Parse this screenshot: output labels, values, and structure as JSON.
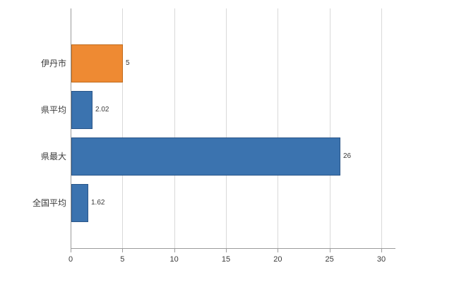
{
  "chart_data": {
    "type": "bar",
    "orientation": "horizontal",
    "title": "",
    "xlabel": "",
    "ylabel": "",
    "categories": [
      "伊丹市",
      "県平均",
      "県最大",
      "全国平均"
    ],
    "values": [
      5,
      2.02,
      26,
      1.62
    ],
    "value_labels": [
      "5",
      "2.02",
      "26",
      "1.62"
    ],
    "bar_colors": [
      "#ee8a33",
      "#3b73af",
      "#3b73af",
      "#3b73af"
    ],
    "bar_edge_colors": [
      "#c06a1a",
      "#2a5689",
      "#2a5689",
      "#2a5689"
    ],
    "xticks": [
      0,
      5,
      10,
      15,
      20,
      25,
      30
    ],
    "xtick_labels": [
      "0",
      "5",
      "10",
      "15",
      "20",
      "25",
      "30"
    ],
    "xlim": [
      0,
      31.4
    ],
    "grid": true,
    "legend": "none",
    "grid_color": "#d9d9d9",
    "axis_color": "#9b9b9b"
  }
}
